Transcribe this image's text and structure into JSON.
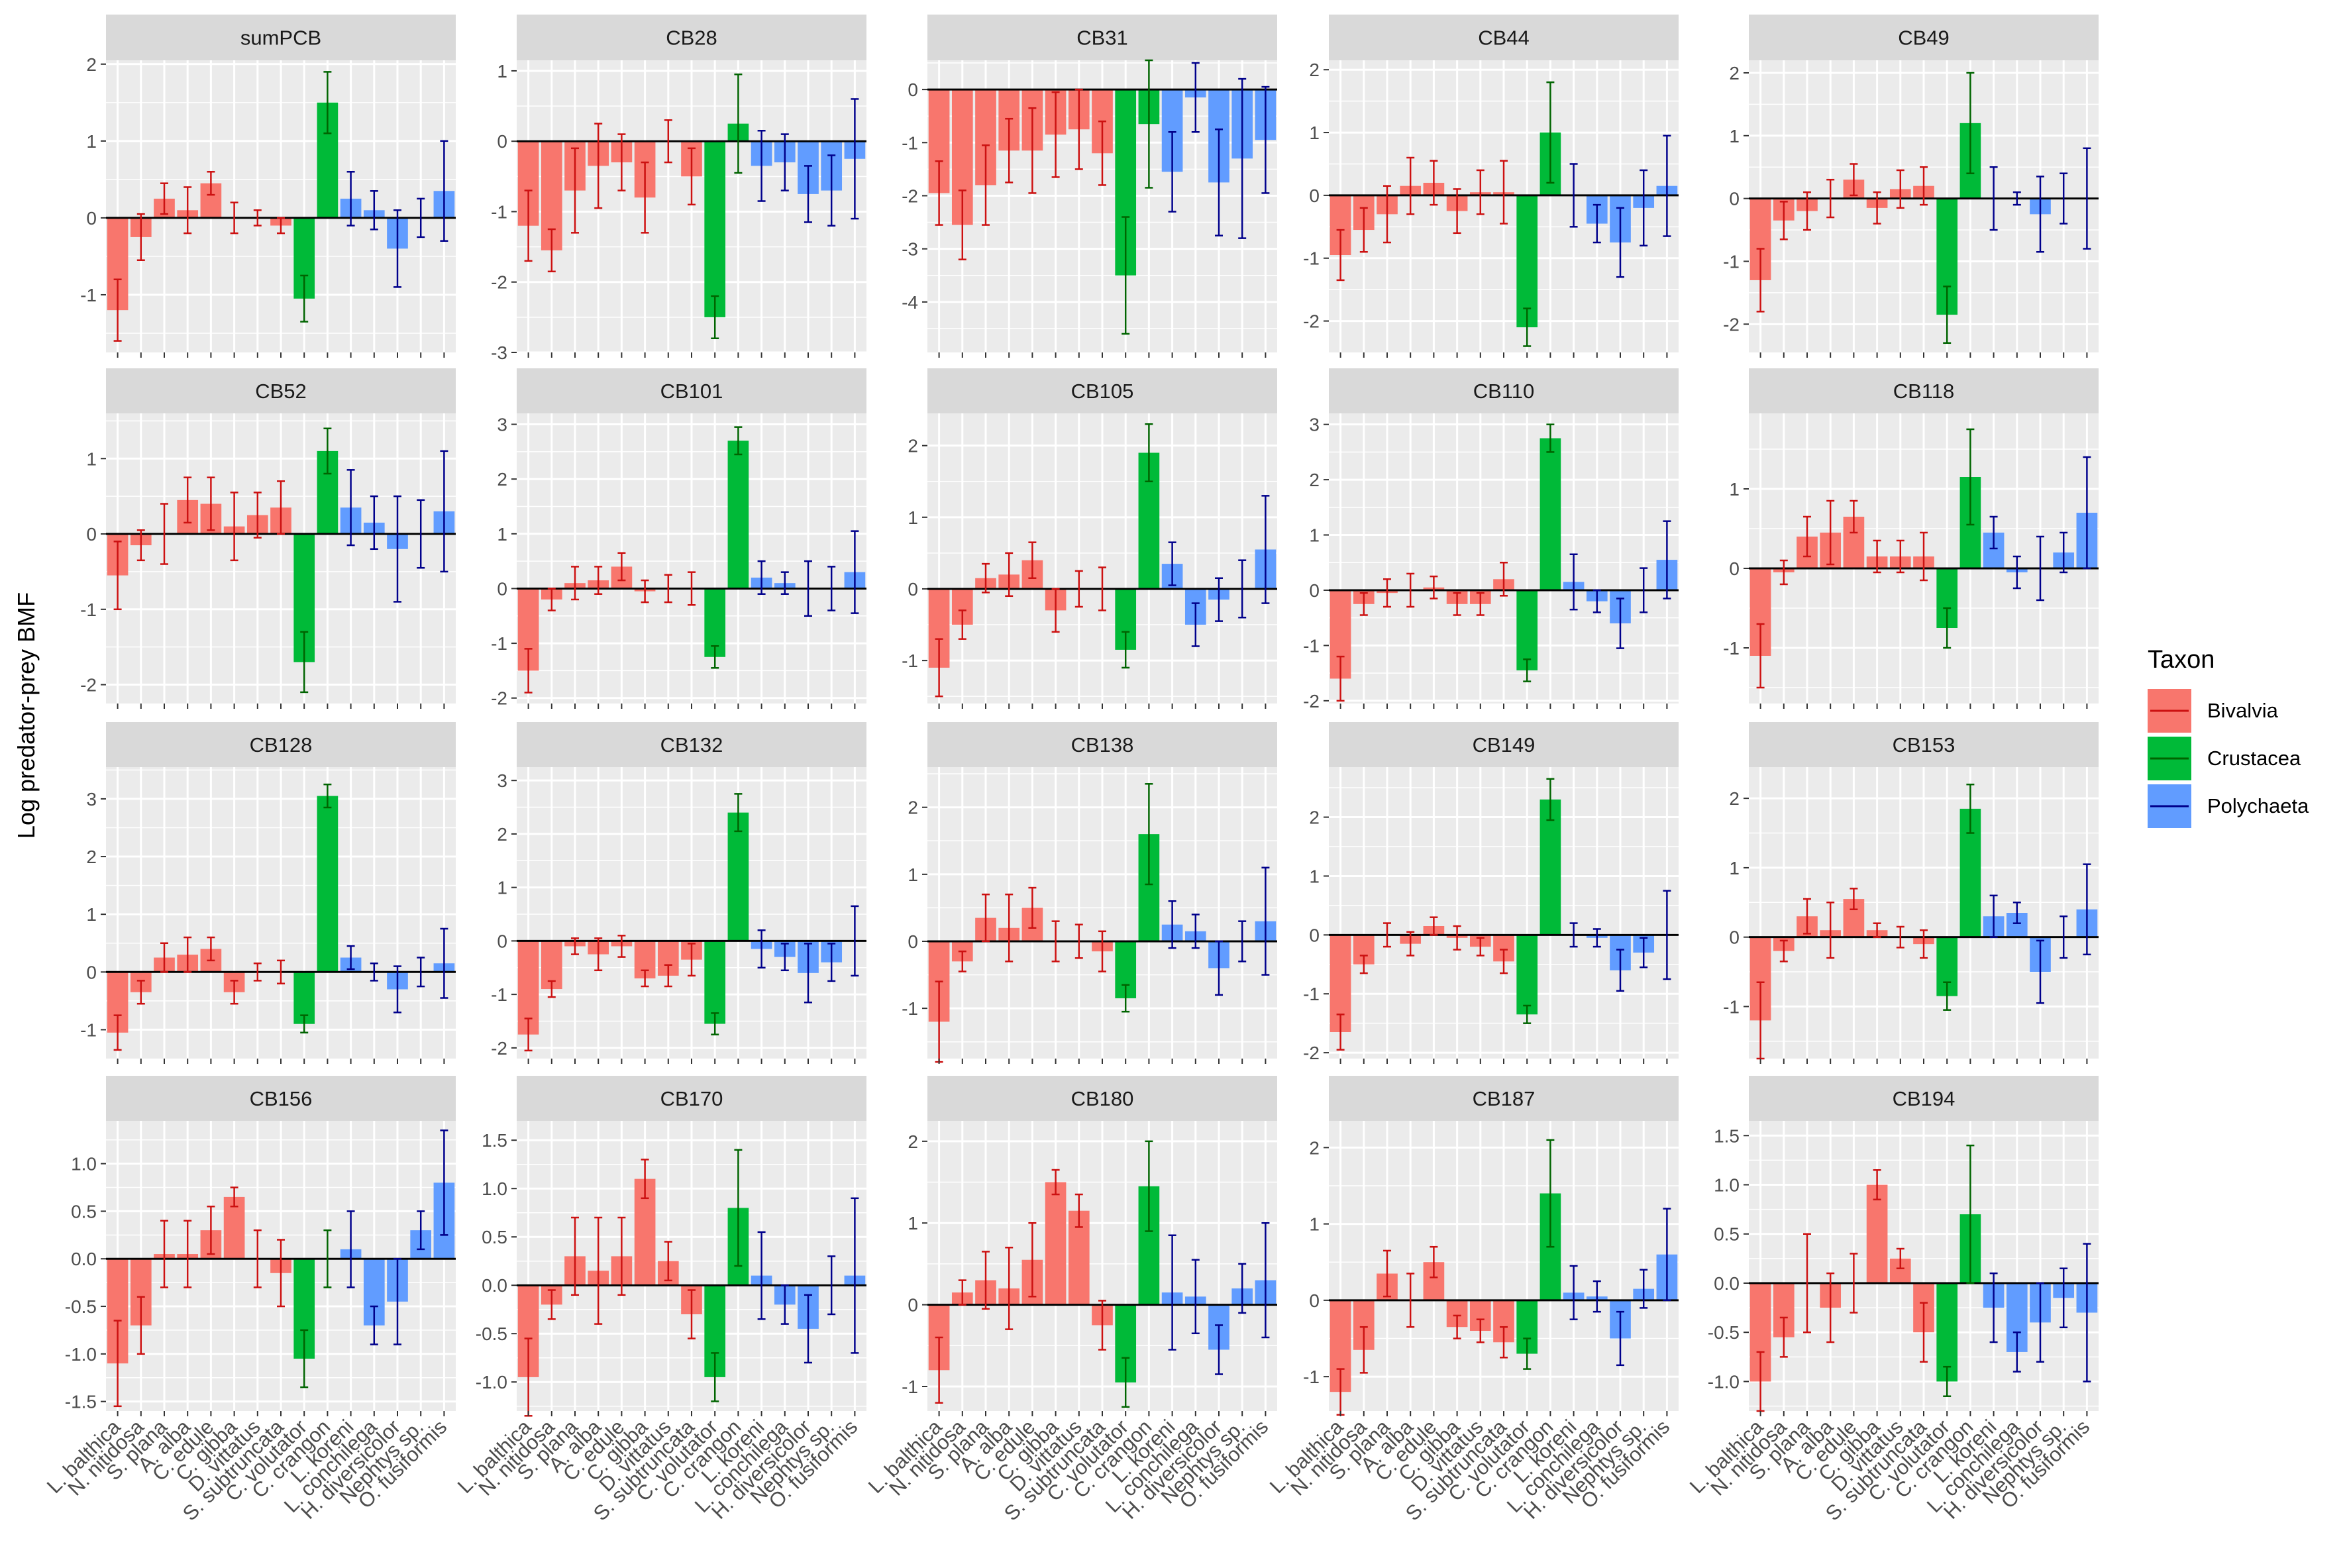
{
  "chart_data": {
    "type": "bar",
    "ylabel": "Log predator-prey BMF",
    "xlabel": "",
    "categories": [
      "L. balthica",
      "N. nitidosa",
      "S. plana",
      "A. alba",
      "C. edule",
      "C. gibba",
      "D. vittatus",
      "S. subtruncata",
      "C. volutator",
      "C. crangon",
      "L. koreni",
      "L. conchilega",
      "H. diversicolor",
      "Nephtys sp.",
      "O. fusiformis"
    ],
    "taxon": [
      "Bivalvia",
      "Bivalvia",
      "Bivalvia",
      "Bivalvia",
      "Bivalvia",
      "Bivalvia",
      "Bivalvia",
      "Bivalvia",
      "Crustacea",
      "Crustacea",
      "Polychaeta",
      "Polychaeta",
      "Polychaeta",
      "Polychaeta",
      "Polychaeta"
    ],
    "legend": {
      "title": "Taxon",
      "position": "right",
      "items": [
        {
          "label": "Bivalvia",
          "fill": "#F8766D",
          "line": "#CC1111"
        },
        {
          "label": "Crustacea",
          "fill": "#00BA38",
          "line": "#006400"
        },
        {
          "label": "Polychaeta",
          "fill": "#619CFF",
          "line": "#00008B"
        }
      ]
    },
    "grid": true,
    "panels": [
      {
        "title": "sumPCB",
        "ylim": [
          -1.75,
          2.05
        ],
        "yticks": [
          "-1",
          "0",
          "1",
          "2"
        ],
        "tickvals": [
          -1,
          0,
          1,
          2
        ],
        "values": [
          -1.2,
          -0.25,
          0.25,
          0.1,
          0.45,
          0.0,
          0.0,
          -0.1,
          -1.05,
          1.5,
          0.25,
          0.1,
          -0.4,
          0.0,
          0.35
        ],
        "errors": [
          0.4,
          0.3,
          0.2,
          0.3,
          0.15,
          0.2,
          0.1,
          0.1,
          0.3,
          0.4,
          0.35,
          0.25,
          0.5,
          0.25,
          0.65
        ]
      },
      {
        "title": "CB28",
        "ylim": [
          -3.0,
          1.15
        ],
        "yticks": [
          "-3",
          "-2",
          "-1",
          "0",
          "1"
        ],
        "tickvals": [
          -3,
          -2,
          -1,
          0,
          1
        ],
        "values": [
          -1.2,
          -1.55,
          -0.7,
          -0.35,
          -0.3,
          -0.8,
          0.0,
          -0.5,
          -2.5,
          0.25,
          -0.35,
          -0.3,
          -0.75,
          -0.7,
          -0.25
        ],
        "errors": [
          0.5,
          0.3,
          0.6,
          0.6,
          0.4,
          0.5,
          0.3,
          0.4,
          0.3,
          0.7,
          0.5,
          0.4,
          0.4,
          0.5,
          0.85
        ]
      },
      {
        "title": "CB31",
        "ylim": [
          -4.95,
          0.55
        ],
        "yticks": [
          "-4",
          "-3",
          "-2",
          "-1",
          "0"
        ],
        "tickvals": [
          -4,
          -3,
          -2,
          -1,
          0
        ],
        "values": [
          -1.95,
          -2.55,
          -1.8,
          -1.15,
          -1.15,
          -0.85,
          -0.75,
          -1.2,
          -3.5,
          -0.65,
          -1.55,
          -0.15,
          -1.75,
          -1.3,
          -0.95
        ],
        "errors": [
          0.6,
          0.65,
          0.75,
          0.6,
          0.8,
          0.8,
          0.75,
          0.6,
          1.1,
          1.2,
          0.75,
          0.65,
          1.0,
          1.5,
          1.0
        ]
      },
      {
        "title": "CB44",
        "ylim": [
          -2.5,
          2.15
        ],
        "yticks": [
          "-2",
          "-1",
          "0",
          "1",
          "2"
        ],
        "tickvals": [
          -2,
          -1,
          0,
          1,
          2
        ],
        "values": [
          -0.95,
          -0.55,
          -0.3,
          0.15,
          0.2,
          -0.25,
          0.05,
          0.05,
          -2.1,
          1.0,
          0.0,
          -0.45,
          -0.75,
          -0.2,
          0.15
        ],
        "errors": [
          0.4,
          0.35,
          0.45,
          0.45,
          0.35,
          0.35,
          0.35,
          0.5,
          0.3,
          0.8,
          0.5,
          0.3,
          0.55,
          0.6,
          0.8
        ]
      },
      {
        "title": "CB49",
        "ylim": [
          -2.45,
          2.2
        ],
        "yticks": [
          "-2",
          "-1",
          "0",
          "1",
          "2"
        ],
        "tickvals": [
          -2,
          -1,
          0,
          1,
          2
        ],
        "values": [
          -1.3,
          -0.35,
          -0.2,
          0.0,
          0.3,
          -0.15,
          0.15,
          0.2,
          -1.85,
          1.2,
          0.0,
          0.0,
          -0.25,
          0.0,
          0.0
        ],
        "errors": [
          0.5,
          0.3,
          0.3,
          0.3,
          0.25,
          0.25,
          0.3,
          0.3,
          0.45,
          0.8,
          0.5,
          0.1,
          0.6,
          0.4,
          0.8
        ]
      },
      {
        "title": "CB52",
        "ylim": [
          -2.25,
          1.6
        ],
        "yticks": [
          "-2",
          "-1",
          "0",
          "1"
        ],
        "tickvals": [
          -2,
          -1,
          0,
          1
        ],
        "values": [
          -0.55,
          -0.15,
          0.0,
          0.45,
          0.4,
          0.1,
          0.25,
          0.35,
          -1.7,
          1.1,
          0.35,
          0.15,
          -0.2,
          0.0,
          0.3
        ],
        "errors": [
          0.45,
          0.2,
          0.4,
          0.3,
          0.35,
          0.45,
          0.3,
          0.35,
          0.4,
          0.3,
          0.5,
          0.35,
          0.7,
          0.45,
          0.8
        ]
      },
      {
        "title": "CB101",
        "ylim": [
          -2.1,
          3.2
        ],
        "yticks": [
          "-2",
          "-1",
          "0",
          "1",
          "2",
          "3"
        ],
        "tickvals": [
          -2,
          -1,
          0,
          1,
          2,
          3
        ],
        "values": [
          -1.5,
          -0.2,
          0.1,
          0.15,
          0.4,
          -0.05,
          0.0,
          0.0,
          -1.25,
          2.7,
          0.2,
          0.1,
          0.0,
          0.0,
          0.3
        ],
        "errors": [
          0.4,
          0.2,
          0.3,
          0.25,
          0.25,
          0.2,
          0.25,
          0.3,
          0.2,
          0.25,
          0.3,
          0.2,
          0.5,
          0.4,
          0.75
        ]
      },
      {
        "title": "CB105",
        "ylim": [
          -1.6,
          2.45
        ],
        "yticks": [
          "-1",
          "0",
          "1",
          "2"
        ],
        "tickvals": [
          -1,
          0,
          1,
          2
        ],
        "values": [
          -1.1,
          -0.5,
          0.15,
          0.2,
          0.4,
          -0.3,
          0.0,
          0.0,
          -0.85,
          1.9,
          0.35,
          -0.5,
          -0.15,
          0.0,
          0.55
        ],
        "errors": [
          0.4,
          0.2,
          0.2,
          0.3,
          0.25,
          0.3,
          0.25,
          0.3,
          0.25,
          0.4,
          0.3,
          0.3,
          0.3,
          0.4,
          0.75
        ]
      },
      {
        "title": "CB110",
        "ylim": [
          -2.05,
          3.2
        ],
        "yticks": [
          "-2",
          "-1",
          "0",
          "1",
          "2",
          "3"
        ],
        "tickvals": [
          -2,
          -1,
          0,
          1,
          2,
          3
        ],
        "values": [
          -1.6,
          -0.25,
          -0.05,
          0.0,
          0.05,
          -0.25,
          -0.25,
          0.2,
          -1.45,
          2.75,
          0.15,
          -0.2,
          -0.6,
          0.0,
          0.55
        ],
        "errors": [
          0.4,
          0.2,
          0.25,
          0.3,
          0.2,
          0.2,
          0.2,
          0.3,
          0.2,
          0.25,
          0.5,
          0.2,
          0.45,
          0.4,
          0.7
        ]
      },
      {
        "title": "CB118",
        "ylim": [
          -1.7,
          1.95
        ],
        "yticks": [
          "-1",
          "0",
          "1"
        ],
        "tickvals": [
          -1,
          0,
          1
        ],
        "values": [
          -1.1,
          -0.05,
          0.4,
          0.45,
          0.65,
          0.15,
          0.15,
          0.15,
          -0.75,
          1.15,
          0.45,
          -0.05,
          0.0,
          0.2,
          0.7
        ],
        "errors": [
          0.4,
          0.15,
          0.25,
          0.4,
          0.2,
          0.2,
          0.2,
          0.3,
          0.25,
          0.6,
          0.2,
          0.2,
          0.4,
          0.25,
          0.7
        ]
      },
      {
        "title": "CB128",
        "ylim": [
          -1.5,
          3.55
        ],
        "yticks": [
          "-1",
          "0",
          "1",
          "2",
          "3"
        ],
        "tickvals": [
          -1,
          0,
          1,
          2,
          3
        ],
        "values": [
          -1.05,
          -0.35,
          0.25,
          0.3,
          0.4,
          -0.35,
          0.0,
          0.0,
          -0.9,
          3.05,
          0.25,
          0.0,
          -0.3,
          0.0,
          0.15
        ],
        "errors": [
          0.3,
          0.2,
          0.25,
          0.3,
          0.2,
          0.2,
          0.15,
          0.2,
          0.15,
          0.2,
          0.2,
          0.15,
          0.4,
          0.25,
          0.6
        ]
      },
      {
        "title": "CB132",
        "ylim": [
          -2.2,
          3.25
        ],
        "yticks": [
          "-2",
          "-1",
          "0",
          "1",
          "2",
          "3"
        ],
        "tickvals": [
          -2,
          -1,
          0,
          1,
          2,
          3
        ],
        "values": [
          -1.75,
          -0.9,
          -0.1,
          -0.25,
          -0.1,
          -0.7,
          -0.65,
          -0.35,
          -1.55,
          2.4,
          -0.15,
          -0.3,
          -0.6,
          -0.4,
          0.0
        ],
        "errors": [
          0.3,
          0.15,
          0.15,
          0.3,
          0.2,
          0.15,
          0.2,
          0.3,
          0.2,
          0.35,
          0.35,
          0.25,
          0.55,
          0.35,
          0.65
        ]
      },
      {
        "title": "CB138",
        "ylim": [
          -1.75,
          2.6
        ],
        "yticks": [
          "-1",
          "0",
          "1",
          "2"
        ],
        "tickvals": [
          -1,
          0,
          1,
          2
        ],
        "values": [
          -1.2,
          -0.3,
          0.35,
          0.2,
          0.5,
          0.0,
          0.0,
          -0.15,
          -0.85,
          1.6,
          0.25,
          0.15,
          -0.4,
          0.0,
          0.3
        ],
        "errors": [
          0.6,
          0.15,
          0.35,
          0.5,
          0.3,
          0.3,
          0.25,
          0.3,
          0.2,
          0.75,
          0.35,
          0.25,
          0.4,
          0.3,
          0.8
        ]
      },
      {
        "title": "CB149",
        "ylim": [
          -2.1,
          2.85
        ],
        "yticks": [
          "-2",
          "-1",
          "0",
          "1",
          "2"
        ],
        "tickvals": [
          -2,
          -1,
          0,
          1,
          2
        ],
        "values": [
          -1.65,
          -0.5,
          0.0,
          -0.15,
          0.15,
          -0.05,
          -0.2,
          -0.45,
          -1.35,
          2.3,
          0.0,
          -0.05,
          -0.6,
          -0.3,
          0.0
        ],
        "errors": [
          0.3,
          0.15,
          0.2,
          0.2,
          0.15,
          0.2,
          0.15,
          0.2,
          0.15,
          0.35,
          0.2,
          0.15,
          0.35,
          0.25,
          0.75
        ]
      },
      {
        "title": "CB153",
        "ylim": [
          -1.75,
          2.45
        ],
        "yticks": [
          "-1",
          "0",
          "1",
          "2"
        ],
        "tickvals": [
          -1,
          0,
          1,
          2
        ],
        "values": [
          -1.2,
          -0.2,
          0.3,
          0.1,
          0.55,
          0.1,
          0.0,
          -0.1,
          -0.85,
          1.85,
          0.3,
          0.35,
          -0.5,
          0.0,
          0.4
        ],
        "errors": [
          0.55,
          0.15,
          0.25,
          0.4,
          0.15,
          0.1,
          0.15,
          0.2,
          0.2,
          0.35,
          0.3,
          0.15,
          0.45,
          0.3,
          0.65
        ]
      },
      {
        "title": "CB156",
        "ylim": [
          -1.6,
          1.45
        ],
        "yticks": [
          "-1.5",
          "-1.0",
          "-0.5",
          "0.0",
          "0.5",
          "1.0"
        ],
        "tickvals": [
          -1.5,
          -1.0,
          -0.5,
          0.0,
          0.5,
          1.0
        ],
        "values": [
          -1.1,
          -0.7,
          0.05,
          0.05,
          0.3,
          0.65,
          0.0,
          -0.15,
          -1.05,
          0.0,
          0.1,
          -0.7,
          -0.45,
          0.3,
          0.8
        ],
        "errors": [
          0.45,
          0.3,
          0.35,
          0.35,
          0.25,
          0.1,
          0.3,
          0.35,
          0.3,
          0.3,
          0.4,
          0.2,
          0.45,
          0.2,
          0.55
        ]
      },
      {
        "title": "CB170",
        "ylim": [
          -1.3,
          1.7
        ],
        "yticks": [
          "-1.0",
          "-0.5",
          "0.0",
          "0.5",
          "1.0",
          "1.5"
        ],
        "tickvals": [
          -1.0,
          -0.5,
          0.0,
          0.5,
          1.0,
          1.5
        ],
        "values": [
          -0.95,
          -0.2,
          0.3,
          0.15,
          0.3,
          1.1,
          0.25,
          -0.3,
          -0.95,
          0.8,
          0.1,
          -0.2,
          -0.45,
          0.0,
          0.1
        ],
        "errors": [
          0.4,
          0.15,
          0.4,
          0.55,
          0.4,
          0.2,
          0.2,
          0.25,
          0.25,
          0.6,
          0.45,
          0.2,
          0.35,
          0.3,
          0.8
        ]
      },
      {
        "title": "CB180",
        "ylim": [
          -1.3,
          2.25
        ],
        "yticks": [
          "-1",
          "0",
          "1",
          "2"
        ],
        "tickvals": [
          -1,
          0,
          1,
          2
        ],
        "values": [
          -0.8,
          0.15,
          0.3,
          0.2,
          0.55,
          1.5,
          1.15,
          -0.25,
          -0.95,
          1.45,
          0.15,
          0.1,
          -0.55,
          0.2,
          0.3
        ],
        "errors": [
          0.4,
          0.15,
          0.35,
          0.5,
          0.45,
          0.15,
          0.2,
          0.3,
          0.3,
          0.55,
          0.7,
          0.45,
          0.3,
          0.3,
          0.7
        ]
      },
      {
        "title": "CB187",
        "ylim": [
          -1.45,
          2.35
        ],
        "yticks": [
          "-1",
          "0",
          "1",
          "2"
        ],
        "tickvals": [
          -1,
          0,
          1,
          2
        ],
        "values": [
          -1.2,
          -0.65,
          0.35,
          0.0,
          0.5,
          -0.35,
          -0.4,
          -0.55,
          -0.7,
          1.4,
          0.1,
          0.05,
          -0.5,
          0.15,
          0.6
        ],
        "errors": [
          0.3,
          0.3,
          0.3,
          0.35,
          0.2,
          0.15,
          0.15,
          0.2,
          0.2,
          0.7,
          0.35,
          0.2,
          0.35,
          0.25,
          0.6
        ]
      },
      {
        "title": "CB194",
        "ylim": [
          -1.3,
          1.65
        ],
        "yticks": [
          "-1.0",
          "-0.5",
          "0.0",
          "0.5",
          "1.0",
          "1.5"
        ],
        "tickvals": [
          -1.0,
          -0.5,
          0.0,
          0.5,
          1.0,
          1.5
        ],
        "values": [
          -1.0,
          -0.55,
          0.0,
          -0.25,
          0.0,
          1.0,
          0.25,
          -0.5,
          -1.0,
          0.7,
          -0.25,
          -0.7,
          -0.4,
          -0.15,
          -0.3
        ],
        "errors": [
          0.3,
          0.2,
          0.5,
          0.35,
          0.3,
          0.15,
          0.1,
          0.3,
          0.15,
          0.7,
          0.35,
          0.2,
          0.4,
          0.3,
          0.7
        ]
      }
    ]
  }
}
